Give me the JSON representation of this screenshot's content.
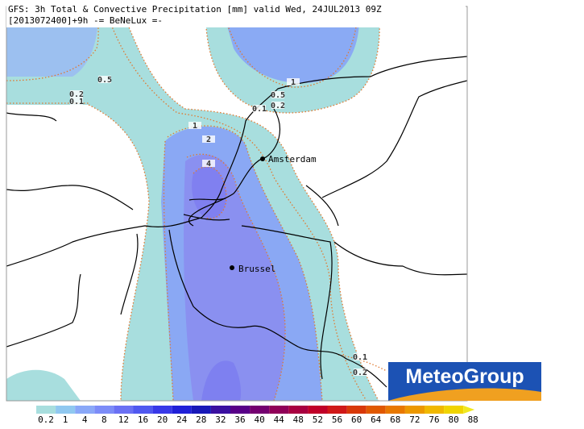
{
  "header": {
    "line1": "GFS: 3h Total & Convective Precipitation [mm] valid Wed, 24JUL2013 09Z",
    "line2": "[2013072400]+9h  -= BeNeLux =-"
  },
  "cities": [
    {
      "label": "Amsterdam"
    },
    {
      "label": "Brussel"
    }
  ],
  "contour_labels": [
    "0.5",
    "0.2",
    "0.1",
    "1",
    "2",
    "4",
    "1",
    "0.5",
    "0.1",
    "0.2",
    "0.1",
    "0.2"
  ],
  "logo": "MeteoGroup",
  "colorbar": {
    "labels": [
      0.2,
      1,
      4,
      8,
      12,
      16,
      20,
      24,
      28,
      32,
      36,
      40,
      44,
      48,
      52,
      56,
      60,
      64,
      68,
      72,
      76,
      80,
      88
    ],
    "colors": [
      "#a8dede",
      "#90c8f0",
      "#8aa8f8",
      "#7c8cf8",
      "#6a70f4",
      "#5058f0",
      "#3838e8",
      "#2020d8",
      "#1818b8",
      "#3a10a0",
      "#580088",
      "#740070",
      "#900058",
      "#a80040",
      "#c00028",
      "#d01818",
      "#d83808",
      "#e05800",
      "#e87800",
      "#ec9800",
      "#f0b800",
      "#f0d400",
      "#f0e820"
    ]
  }
}
